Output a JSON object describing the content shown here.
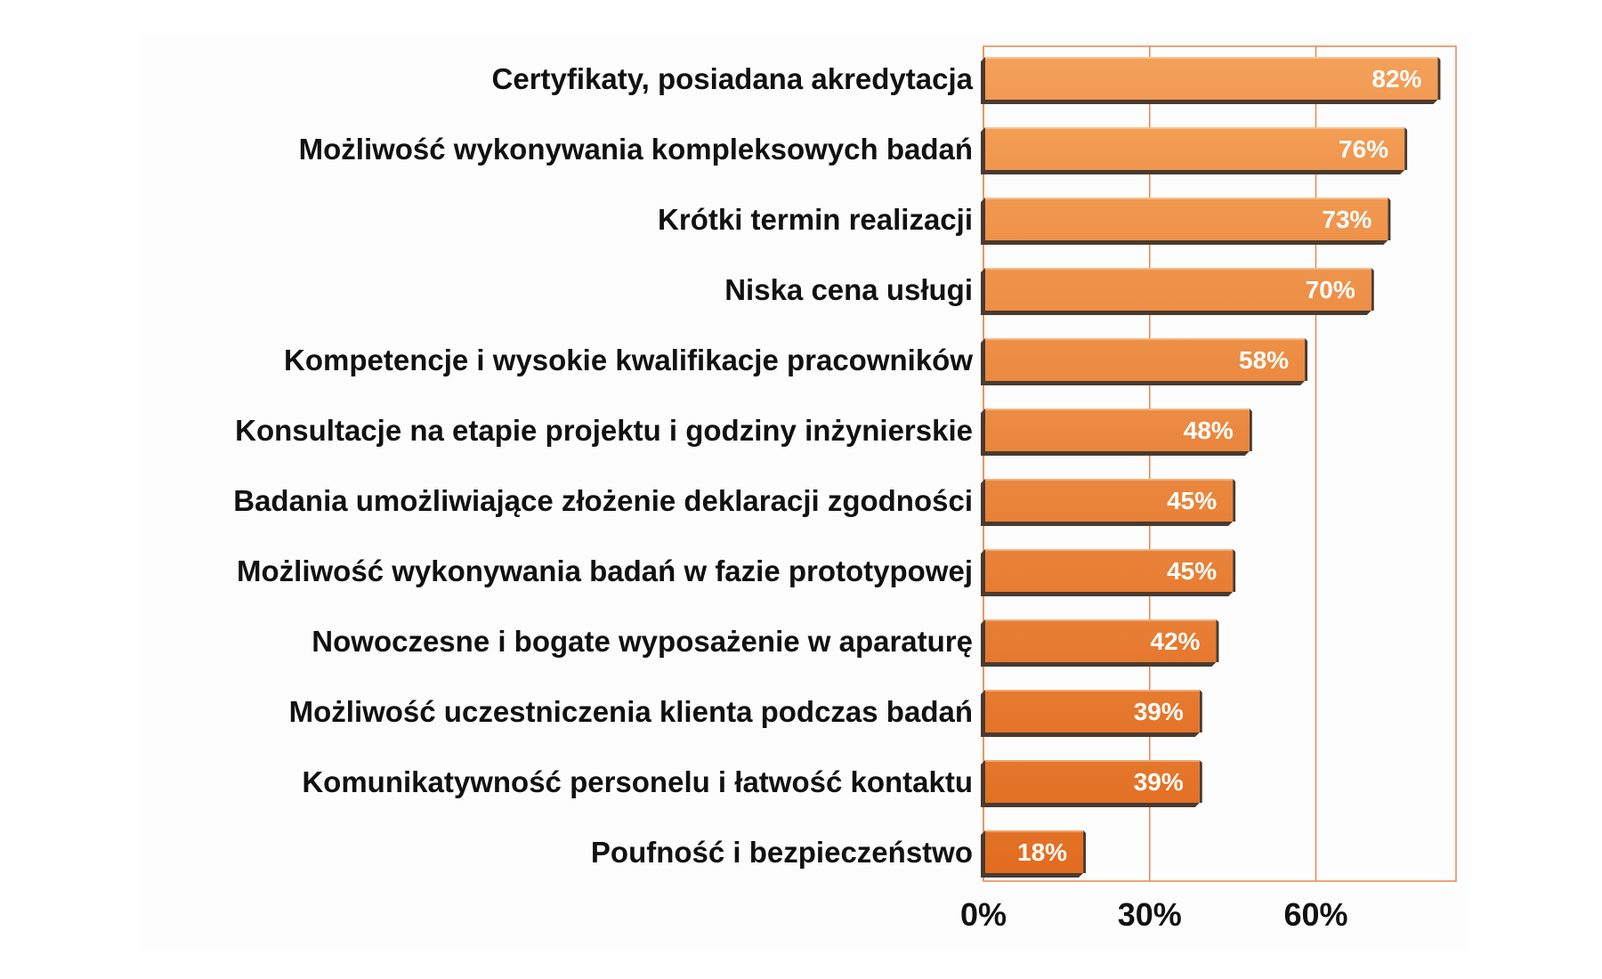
{
  "chart_data": {
    "type": "bar",
    "orientation": "horizontal",
    "categories": [
      "Certyfikaty, posiadana akredytacja",
      "Możliwość wykonywania kompleksowych badań",
      "Krótki termin realizacji",
      "Niska cena usługi",
      "Kompetencje i wysokie kwalifikacje pracowników",
      "Konsultacje na etapie projektu i godziny inżynierskie",
      "Badania umożliwiające złożenie deklaracji zgodności",
      "Możliwość wykonywania badań w fazie prototypowej",
      "Nowoczesne i bogate wyposażenie w aparaturę",
      "Możliwość uczestniczenia klienta podczas badań",
      "Komunikatywność personelu i łatwość kontaktu",
      "Poufność i bezpieczeństwo"
    ],
    "values": [
      82,
      76,
      73,
      70,
      58,
      48,
      45,
      45,
      42,
      39,
      39,
      18
    ],
    "value_labels": [
      "82%",
      "76%",
      "73%",
      "70%",
      "58%",
      "48%",
      "45%",
      "45%",
      "42%",
      "39%",
      "39%",
      "18%"
    ],
    "x_ticks": [
      0,
      30,
      60
    ],
    "x_tick_labels": [
      "0%",
      "30%",
      "60%"
    ],
    "xlim": [
      0,
      85
    ],
    "grid": "vertical",
    "title": "",
    "xlabel": "",
    "ylabel": "",
    "colors": {
      "bar_light": "#f4a15a",
      "bar_dark": "#e06a1e",
      "bar_shadow": "#4a3a30",
      "grid_line": "#e8874a",
      "plot_border": "#e8874a",
      "background": "#fdfdfd"
    }
  }
}
